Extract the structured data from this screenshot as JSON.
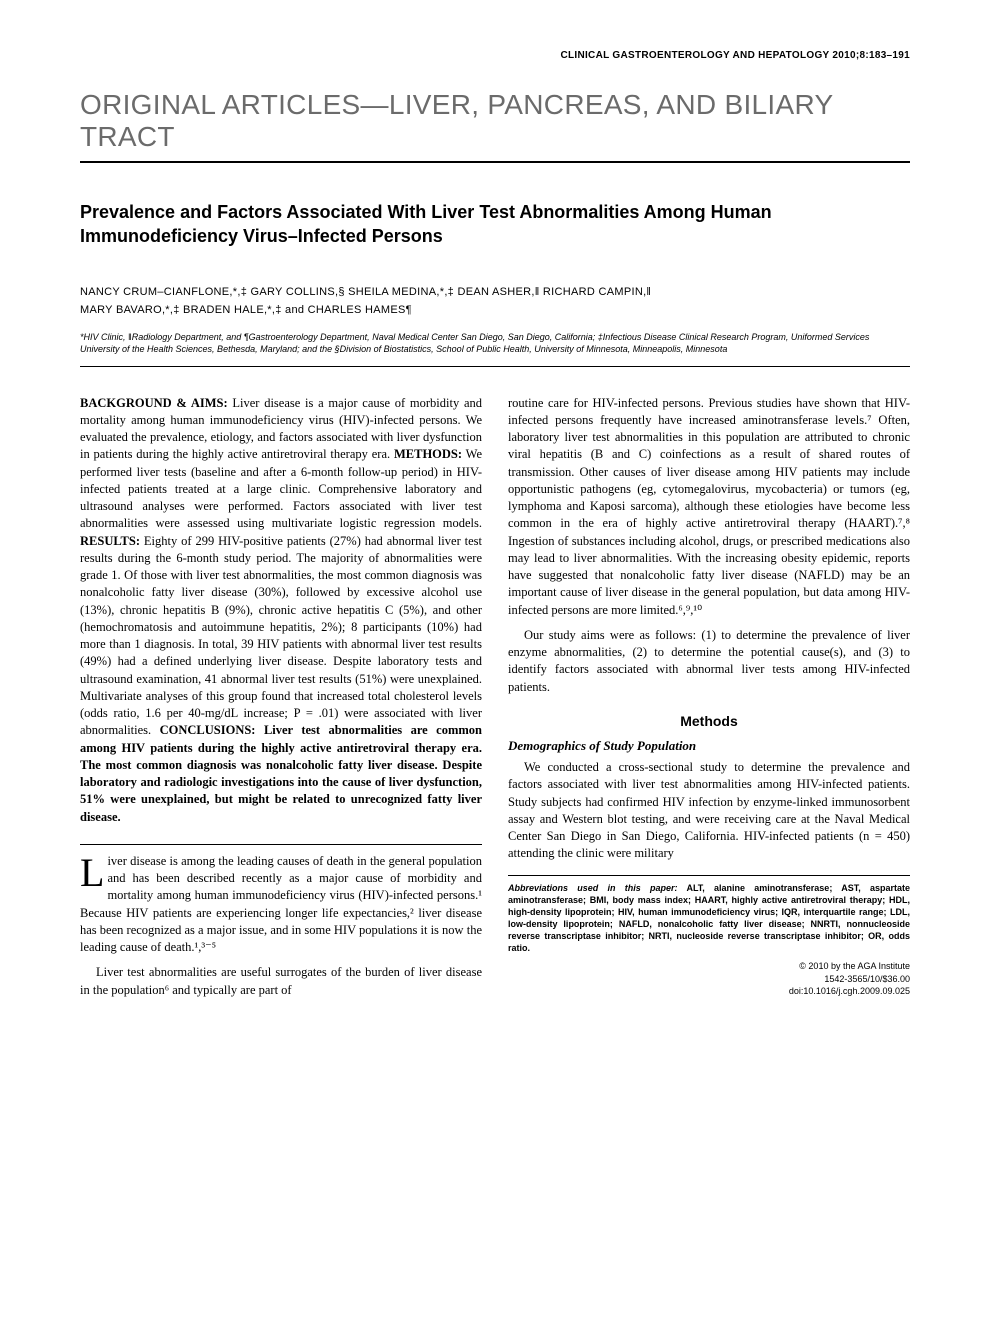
{
  "journal_header": "CLINICAL GASTROENTEROLOGY AND HEPATOLOGY 2010;8:183–191",
  "section_title": "ORIGINAL ARTICLES—LIVER, PANCREAS, AND BILIARY TRACT",
  "article_title": "Prevalence and Factors Associated With Liver Test Abnormalities Among Human Immunodeficiency Virus–Infected Persons",
  "authors_line1": "NANCY CRUM–CIANFLONE,*,‡ GARY COLLINS,§ SHEILA MEDINA,*,‡ DEAN ASHER,‖ RICHARD CAMPIN,‖",
  "authors_line2": "MARY BAVARO,*,‡ BRADEN HALE,*,‡ and CHARLES HAMES¶",
  "affiliations": "*HIV Clinic, ‖Radiology Department, and ¶Gastroenterology Department, Naval Medical Center San Diego, San Diego, California; ‡Infectious Disease Clinical Research Program, Uniformed Services University of the Health Sciences, Bethesda, Maryland; and the §Division of Biostatistics, School of Public Health, University of Minnesota, Minneapolis, Minnesota",
  "abstract": {
    "background_label": "BACKGROUND & AIMS:",
    "background": " Liver disease is a major cause of morbidity and mortality among human immunodeficiency virus (HIV)-infected persons. We evaluated the prevalence, etiology, and factors associated with liver dysfunction in patients during the highly active antiretroviral therapy era. ",
    "methods_label": "METHODS:",
    "methods": " We performed liver tests (baseline and after a 6-month follow-up period) in HIV-infected patients treated at a large clinic. Comprehensive laboratory and ultrasound analyses were performed. Factors associated with liver test abnormalities were assessed using multivariate logistic regression models. ",
    "results_label": "RESULTS:",
    "results": " Eighty of 299 HIV-positive patients (27%) had abnormal liver test results during the 6-month study period. The majority of abnormalities were grade 1. Of those with liver test abnormalities, the most common diagnosis was nonalcoholic fatty liver disease (30%), followed by excessive alcohol use (13%), chronic hepatitis B (9%), chronic active hepatitis C (5%), and other (hemochromatosis and autoimmune hepatitis, 2%); 8 participants (10%) had more than 1 diagnosis. In total, 39 HIV patients with abnormal liver test results (49%) had a defined underlying liver disease. Despite laboratory tests and ultrasound examination, 41 abnormal liver test results (51%) were unexplained. Multivariate analyses of this group found that increased total cholesterol levels (odds ratio, 1.6 per 40-mg/dL increase; P = .01) were associated with liver abnormalities. ",
    "conclusions_label": "CONCLUSIONS:",
    "conclusions": " Liver test abnormalities are common among HIV patients during the highly active antiretroviral therapy era. The most common diagnosis was nonalcoholic fatty liver disease. Despite laboratory and radiologic investigations into the cause of liver dysfunction, 51% were unexplained, but might be related to unrecognized fatty liver disease."
  },
  "intro": {
    "p1_dropcap": "L",
    "p1": "iver disease is among the leading causes of death in the general population and has been described recently as a major cause of morbidity and mortality among human immunodeficiency virus (HIV)-infected persons.¹ Because HIV patients are experiencing longer life expectancies,² liver disease has been recognized as a major issue, and in some HIV populations it is now the leading cause of death.¹,³⁻⁵",
    "p2": "Liver test abnormalities are useful surrogates of the burden of liver disease in the population⁶ and typically are part of",
    "p3": "routine care for HIV-infected persons. Previous studies have shown that HIV-infected persons frequently have increased aminotransferase levels.⁷ Often, laboratory liver test abnormalities in this population are attributed to chronic viral hepatitis (B and C) coinfections as a result of shared routes of transmission. Other causes of liver disease among HIV patients may include opportunistic pathogens (eg, cytomegalovirus, mycobacteria) or tumors (eg, lymphoma and Kaposi sarcoma), although these etiologies have become less common in the era of highly active antiretroviral therapy (HAART).⁷,⁸ Ingestion of substances including alcohol, drugs, or prescribed medications also may lead to liver abnormalities. With the increasing obesity epidemic, reports have suggested that nonalcoholic fatty liver disease (NAFLD) may be an important cause of liver disease in the general population, but data among HIV-infected persons are more limited.⁶,⁹,¹⁰",
    "p4": "Our study aims were as follows: (1) to determine the prevalence of liver enzyme abnormalities, (2) to determine the potential cause(s), and (3) to identify factors associated with abnormal liver tests among HIV-infected patients."
  },
  "methods": {
    "heading": "Methods",
    "sub1": "Demographics of Study Population",
    "p1": "We conducted a cross-sectional study to determine the prevalence and factors associated with liver test abnormalities among HIV-infected patients. Study subjects had confirmed HIV infection by enzyme-linked immunosorbent assay and Western blot testing, and were receiving care at the Naval Medical Center San Diego in San Diego, California. HIV-infected patients (n = 450) attending the clinic were military"
  },
  "abbrev": {
    "label": "Abbreviations used in this paper:",
    "text": " ALT, alanine aminotransferase; AST, aspartate aminotransferase; BMI, body mass index; HAART, highly active antiretroviral therapy; HDL, high-density lipoprotein; HIV, human immunodeficiency virus; IQR, interquartile range; LDL, low-density lipoprotein; NAFLD, nonalcoholic fatty liver disease; NNRTI, nonnucleoside reverse transcriptase inhibitor; NRTI, nucleoside reverse transcriptase inhibitor; OR, odds ratio."
  },
  "copyright": {
    "line1": "© 2010 by the AGA Institute",
    "line2": "1542-3565/10/$36.00",
    "line3": "doi:10.1016/j.cgh.2009.09.025"
  },
  "style": {
    "page_bg": "#ffffff",
    "text_color": "#000000",
    "section_title_color": "#6b6b6b",
    "section_title_fontsize": 28,
    "article_title_fontsize": 18,
    "body_fontsize": 12.5,
    "journal_header_fontsize": 10,
    "authors_fontsize": 11,
    "affiliations_fontsize": 9,
    "abbrev_fontsize": 9,
    "line_height": 1.38,
    "rule_color": "#000000",
    "column_gap": 26
  }
}
